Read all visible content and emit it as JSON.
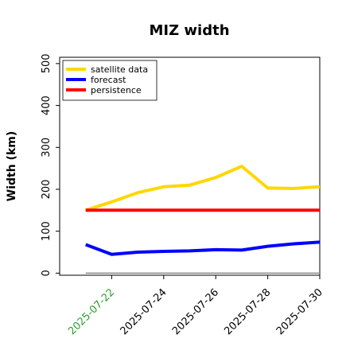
{
  "chart_data": {
    "type": "line",
    "title": "MIZ width",
    "xlabel": "",
    "ylabel": "Width (km)",
    "x": [
      "2025-07-21",
      "2025-07-22",
      "2025-07-23",
      "2025-07-24",
      "2025-07-25",
      "2025-07-26",
      "2025-07-27",
      "2025-07-28",
      "2025-07-29",
      "2025-07-30"
    ],
    "xticks": [
      "2025-07-22",
      "2025-07-24",
      "2025-07-26",
      "2025-07-28",
      "2025-07-30"
    ],
    "xtick_colors": [
      "#2ca02c",
      "#000000",
      "#000000",
      "#000000",
      "#000000"
    ],
    "xlim": [
      "2025-07-20",
      "2025-07-30"
    ],
    "yticks": [
      0,
      100,
      200,
      300,
      400,
      500
    ],
    "ylim": [
      -5,
      515
    ],
    "grid": false,
    "legend_position": "top-left",
    "series": [
      {
        "name": "satellite data",
        "color": "#FFD700",
        "values": [
          150,
          170,
          192,
          206,
          210,
          228,
          255,
          203,
          202,
          206
        ]
      },
      {
        "name": "forecast",
        "color": "#0000FF",
        "values": [
          68,
          45,
          50,
          52,
          53,
          56,
          55,
          64,
          70,
          74
        ]
      },
      {
        "name": "persistence",
        "color": "#FF0000",
        "values": [
          150,
          150,
          150,
          150,
          150,
          150,
          150,
          150,
          150,
          150
        ]
      }
    ],
    "reference_line": {
      "color": "#888888",
      "y": 0
    }
  }
}
